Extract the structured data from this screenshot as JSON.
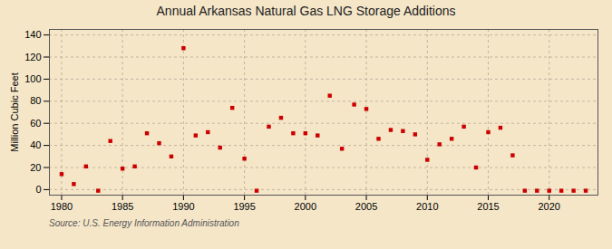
{
  "chart_data": {
    "type": "scatter",
    "title": "Annual Arkansas Natural Gas LNG Storage Additions",
    "y_label": "Million Cubic Feet",
    "source": "Source: U.S. Energy Information Administration",
    "x": [
      1980,
      1981,
      1982,
      1983,
      1984,
      1985,
      1986,
      1987,
      1988,
      1989,
      1990,
      1991,
      1992,
      1993,
      1994,
      1995,
      1996,
      1997,
      1998,
      1999,
      2000,
      2001,
      2002,
      2003,
      2004,
      2005,
      2006,
      2007,
      2008,
      2009,
      2010,
      2011,
      2012,
      2013,
      2014,
      2015,
      2016,
      2017,
      2018,
      2019,
      2020,
      2021,
      2022,
      2023
    ],
    "values": [
      14,
      5,
      21,
      -1,
      44,
      19,
      21,
      51,
      42,
      30,
      128,
      49,
      52,
      38,
      74,
      28,
      -1,
      57,
      65,
      51,
      51,
      49,
      85,
      37,
      77,
      73,
      46,
      54,
      53,
      50,
      27,
      41,
      46,
      57,
      20,
      52,
      56,
      31,
      -1,
      -1,
      -1,
      -1,
      -1,
      -1
    ],
    "color": "#cc0000",
    "marker": "square",
    "xlim": [
      1979,
      2024
    ],
    "ylim": [
      -5,
      145
    ],
    "xticks": [
      1980,
      1985,
      1990,
      1995,
      2000,
      2005,
      2010,
      2015,
      2020
    ],
    "yticks": [
      0,
      20,
      40,
      60,
      80,
      100,
      120,
      140
    ],
    "grid": true
  }
}
